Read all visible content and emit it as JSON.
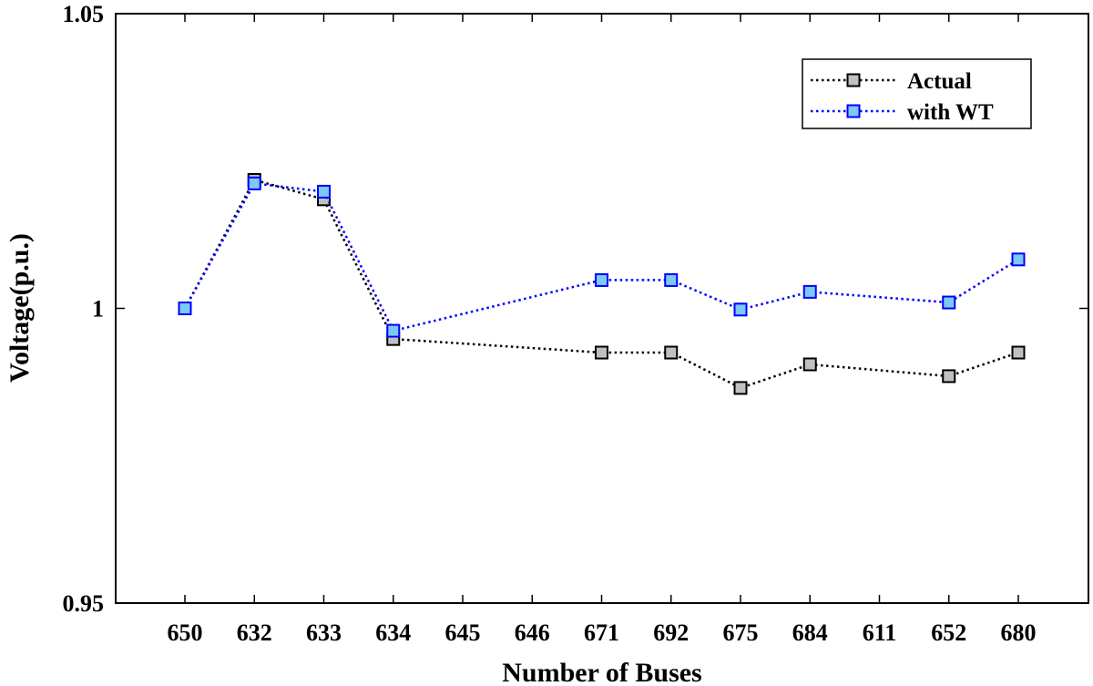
{
  "chart_data": {
    "type": "line",
    "title": "",
    "xlabel": "Number of Buses",
    "ylabel": "Voltage(p.u.)",
    "categories": [
      "650",
      "632",
      "633",
      "634",
      "645",
      "646",
      "671",
      "692",
      "675",
      "684",
      "611",
      "652",
      "680"
    ],
    "ylim": [
      0.95,
      1.05
    ],
    "yticks": [
      "0.95",
      "1",
      "1.05"
    ],
    "grid": false,
    "legend": "top-right",
    "series": [
      {
        "name": "Actual",
        "color": "#000000",
        "marker_fill": "#c0c0c0",
        "values": [
          1.0,
          1.0218,
          1.0185,
          0.9948,
          null,
          null,
          0.9925,
          0.9925,
          0.9865,
          0.9905,
          null,
          0.9885,
          0.9925
        ]
      },
      {
        "name": "with WT",
        "color": "#0000ff",
        "marker_fill": "#7ec8f5",
        "values": [
          1.0,
          1.0212,
          1.0198,
          0.9962,
          null,
          null,
          1.0048,
          1.0048,
          0.9998,
          1.0028,
          null,
          1.001,
          1.0083
        ]
      }
    ]
  }
}
